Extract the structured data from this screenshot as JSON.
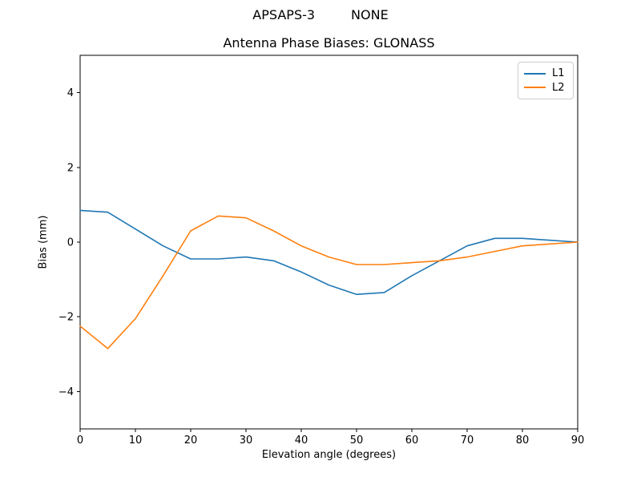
{
  "suptitle": {
    "left": "APSAPS-3",
    "right": "NONE"
  },
  "chart_data": {
    "type": "line",
    "title": "Antenna Phase Biases: GLONASS",
    "xlabel": "Elevation angle (degrees)",
    "ylabel": "Bias (mm)",
    "xlim": [
      0,
      90
    ],
    "ylim": [
      -5,
      5
    ],
    "xticks": [
      0,
      10,
      20,
      30,
      40,
      50,
      60,
      70,
      80,
      90
    ],
    "yticks": [
      -4,
      -2,
      0,
      2,
      4
    ],
    "grid": false,
    "legend_position": "upper right",
    "x": [
      0,
      5,
      10,
      15,
      20,
      25,
      30,
      35,
      40,
      45,
      50,
      55,
      60,
      65,
      70,
      75,
      80,
      85,
      90
    ],
    "series": [
      {
        "name": "L1",
        "color": "#1f77b4",
        "values": [
          0.85,
          0.8,
          0.35,
          -0.1,
          -0.45,
          -0.45,
          -0.4,
          -0.5,
          -0.8,
          -1.15,
          -1.4,
          -1.35,
          -0.9,
          -0.5,
          -0.1,
          0.1,
          0.1,
          0.05,
          0.0
        ]
      },
      {
        "name": "L2",
        "color": "#ff7f0e",
        "values": [
          -2.25,
          -2.85,
          -2.05,
          -0.9,
          0.3,
          0.7,
          0.65,
          0.3,
          -0.1,
          -0.4,
          -0.6,
          -0.6,
          -0.55,
          -0.5,
          -0.4,
          -0.25,
          -0.1,
          -0.05,
          0.0
        ]
      }
    ],
    "axis_color": "#000000",
    "background_color": "#ffffff"
  }
}
